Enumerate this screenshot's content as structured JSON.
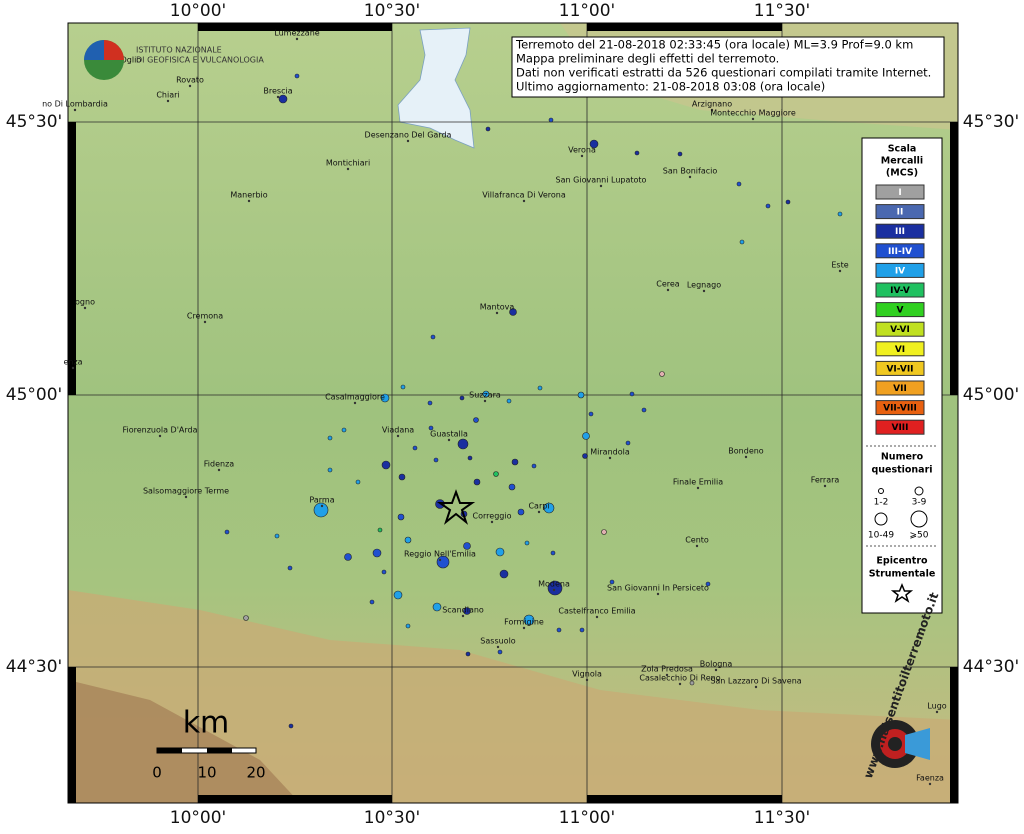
{
  "header": {
    "institute": [
      "ISTITUTO NAZIONALE",
      "DI GEOFISICA E VULCANOLOGIA"
    ],
    "info": [
      "Terremoto del 21-08-2018 02:33:45 (ora locale) ML=3.9 Prof=9.0 km",
      "Mappa preliminare degli effetti del terremoto.",
      "Dati non verificati estratti da 526 questionari compilati tramite Internet.",
      "Ultimo aggiornamento: 21-08-2018 03:08 (ora locale)"
    ]
  },
  "map": {
    "lon_labels": [
      "10°00'",
      "10°30'",
      "11°00'",
      "11°30'"
    ],
    "lat_labels": [
      "45°30'",
      "45°00'",
      "44°30'"
    ],
    "cities": [
      "Lumezzane",
      "colo Sull'Oglio",
      "Rovato",
      "Chiari",
      "no Di Lombardia",
      "Brescia",
      "Desenzano Del Garda",
      "Montichiari",
      "Manerbio",
      "Verona",
      "San Giovanni Lupatoto",
      "San Bonifacio",
      "Villafranca Di Verona",
      "Arzignano",
      "Montecchio Maggiore",
      "Este",
      "Mantova",
      "Cerea",
      "Legnago",
      "ogno",
      "Cremona",
      "enza",
      "Casalmaggiore",
      "Suzzara",
      "Viadana",
      "Guastalla",
      "Fiorenzuola D'Arda",
      "Fidenza",
      "Mirandola",
      "Bondeno",
      "Finale Emilia",
      "Ferrara",
      "Salsomaggiore Terme",
      "Parma",
      "Correggio",
      "Carpi",
      "Cento",
      "Reggio Nell'Emilia",
      "Modena",
      "San Giovanni In Persiceto",
      "Castelfranco Emilia",
      "Scandiano",
      "Formigine",
      "Sassuolo",
      "Vignola",
      "Zola Predosa",
      "Bologna",
      "Casalecchio Di Reno",
      "San Lazzaro Di Savena",
      "Lugo",
      "Faenza"
    ]
  },
  "legend": {
    "title": [
      "Scala",
      "Mercalli",
      "(MCS)"
    ],
    "levels": [
      {
        "label": "I",
        "color": "#a0a0a0"
      },
      {
        "label": "II",
        "color": "#4a68b0"
      },
      {
        "label": "III",
        "color": "#1a2fa0"
      },
      {
        "label": "III-IV",
        "color": "#2050d0"
      },
      {
        "label": "IV",
        "color": "#20a0e8"
      },
      {
        "label": "IV-V",
        "color": "#20c060"
      },
      {
        "label": "V",
        "color": "#30d020"
      },
      {
        "label": "V-VI",
        "color": "#c0e020"
      },
      {
        "label": "VI",
        "color": "#f0f020"
      },
      {
        "label": "VI-VII",
        "color": "#f0c820"
      },
      {
        "label": "VII",
        "color": "#f0a020"
      },
      {
        "label": "VII-VIII",
        "color": "#e86010"
      },
      {
        "label": "VIII",
        "color": "#e02020"
      }
    ],
    "count_title": [
      "Numero",
      "questionari"
    ],
    "counts": [
      "1-2",
      "3-9",
      "10-49",
      "⩾50"
    ],
    "epicenter": [
      "Epicentro",
      "Strumentale"
    ]
  },
  "scale": {
    "unit": "km",
    "ticks": [
      "0",
      "10",
      "20"
    ]
  },
  "logo": "www.haisentitoilterremoto.it"
}
